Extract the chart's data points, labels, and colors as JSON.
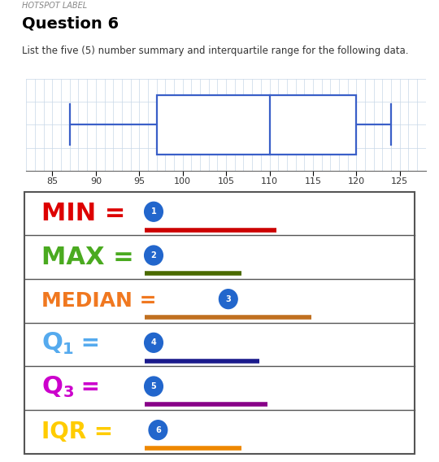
{
  "hotspot_label": "HOTSPOT LABEL",
  "question": "Question 6",
  "description": "List the five (5) number summary and interquartile range for the following data.",
  "boxplot": {
    "min": 87,
    "q1": 97,
    "median": 110,
    "q3": 120,
    "max": 124,
    "xlim": [
      82,
      128
    ],
    "xticks": [
      85,
      90,
      95,
      100,
      105,
      110,
      115,
      120,
      125
    ]
  },
  "rows": [
    {
      "label": "MIN =",
      "label_color": "#dd0000",
      "line_color": "#cc0000",
      "circle_num": "1",
      "fs": 22
    },
    {
      "label": "MAX =",
      "label_color": "#4aaa20",
      "line_color": "#4a6a00",
      "circle_num": "2",
      "fs": 22
    },
    {
      "label": "MEDIAN =",
      "label_color": "#f07820",
      "line_color": "#c07020",
      "circle_num": "3",
      "fs": 18
    },
    {
      "label": "Q1 =",
      "label_color": "#55aaee",
      "line_color": "#1a1a8c",
      "circle_num": "4",
      "fs": 20
    },
    {
      "label": "Q3 =",
      "label_color": "#cc00cc",
      "line_color": "#880088",
      "circle_num": "5",
      "fs": 20
    },
    {
      "label": "IQR =",
      "label_color": "#ffcc00",
      "line_color": "#ee8800",
      "circle_num": "6",
      "fs": 20
    }
  ],
  "background_color": "#ffffff",
  "grid_color": "#c8d8e8",
  "box_color": "#3a5fc8"
}
